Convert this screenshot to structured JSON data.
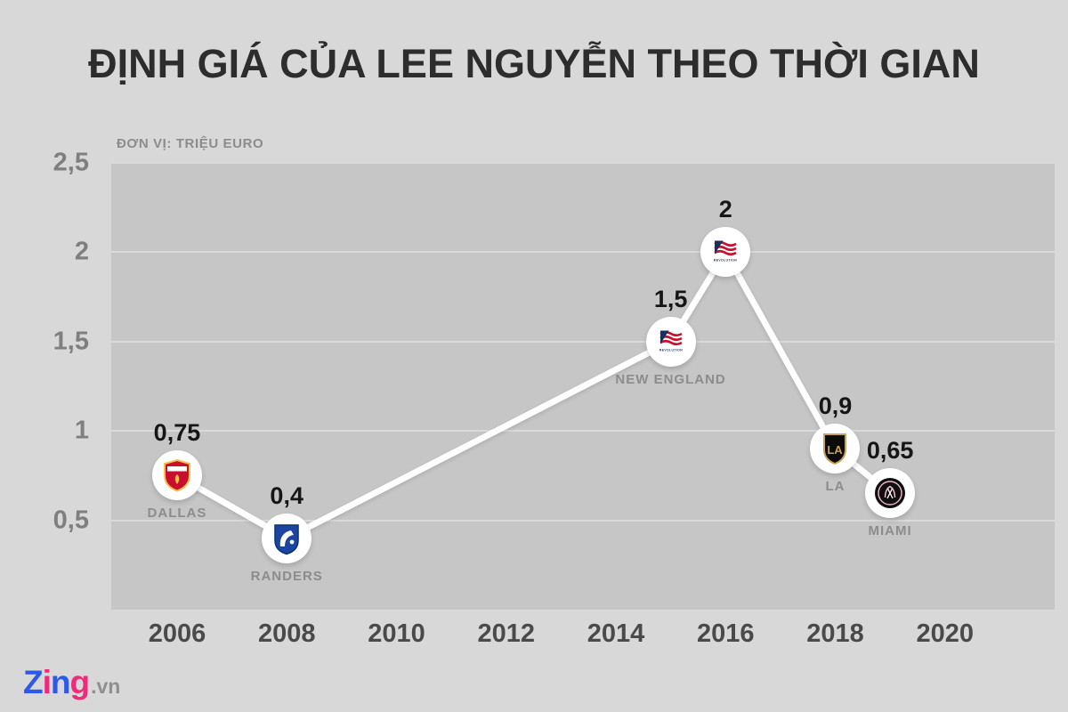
{
  "chart_data": {
    "type": "line",
    "title": "ĐỊNH GIÁ CỦA LEE NGUYỄN THEO THỜI GIAN",
    "unit_label": "ĐƠN VỊ: TRIỆU EURO",
    "xlabel": "",
    "ylabel": "",
    "x_range": [
      2004.8,
      2022
    ],
    "y_range": [
      0,
      2.5
    ],
    "grid": true,
    "legend": false,
    "line_color": "#ffffff",
    "x_ticks": [
      {
        "value": 2006,
        "label": "2006"
      },
      {
        "value": 2008,
        "label": "2008"
      },
      {
        "value": 2010,
        "label": "2010"
      },
      {
        "value": 2012,
        "label": "2012"
      },
      {
        "value": 2014,
        "label": "2014"
      },
      {
        "value": 2016,
        "label": "2016"
      },
      {
        "value": 2018,
        "label": "2018"
      },
      {
        "value": 2020,
        "label": "2020"
      }
    ],
    "y_ticks": [
      {
        "value": 2.5,
        "label": "2,5"
      },
      {
        "value": 2,
        "label": "2"
      },
      {
        "value": 1.5,
        "label": "1,5"
      },
      {
        "value": 1,
        "label": "1"
      },
      {
        "value": 0.5,
        "label": "0,5"
      }
    ],
    "points": [
      {
        "year": 2006,
        "value": 0.75,
        "value_label": "0,75",
        "club": "DALLAS",
        "logo": "fc-dallas"
      },
      {
        "year": 2008,
        "value": 0.4,
        "value_label": "0,4",
        "club": "RANDERS",
        "logo": "randers"
      },
      {
        "year": 2015,
        "value": 1.5,
        "value_label": "1,5",
        "club": "NEW ENGLAND",
        "logo": "new-england-revolution"
      },
      {
        "year": 2016,
        "value": 2,
        "value_label": "2",
        "club": "",
        "logo": "new-england-revolution"
      },
      {
        "year": 2018,
        "value": 0.9,
        "value_label": "0,9",
        "club": "LA",
        "logo": "lafc"
      },
      {
        "year": 2019,
        "value": 0.65,
        "value_label": "0,65",
        "club": "MIAMI",
        "logo": "inter-miami"
      }
    ]
  },
  "logos": {
    "revolution_text": "REVOLUTION",
    "lafc_monogram": "LA"
  },
  "branding": {
    "letters": [
      {
        "char": "Z",
        "color": "#2b59e8"
      },
      {
        "char": "i",
        "color": "#ee2a7b"
      },
      {
        "char": "n",
        "color": "#2b59e8"
      },
      {
        "char": "g",
        "color": "#ee2a7b"
      }
    ],
    "suffix": ".vn"
  },
  "colors": {
    "background": "#d8d8d8",
    "plot_background": "#c6c6c6",
    "grid_line": "#dadada",
    "title": "#2d2d2d",
    "axis_y_label": "#7f7f7f",
    "axis_x_label": "#4a4a4a",
    "value_label": "#161616",
    "club_label": "#8c8c8c"
  }
}
